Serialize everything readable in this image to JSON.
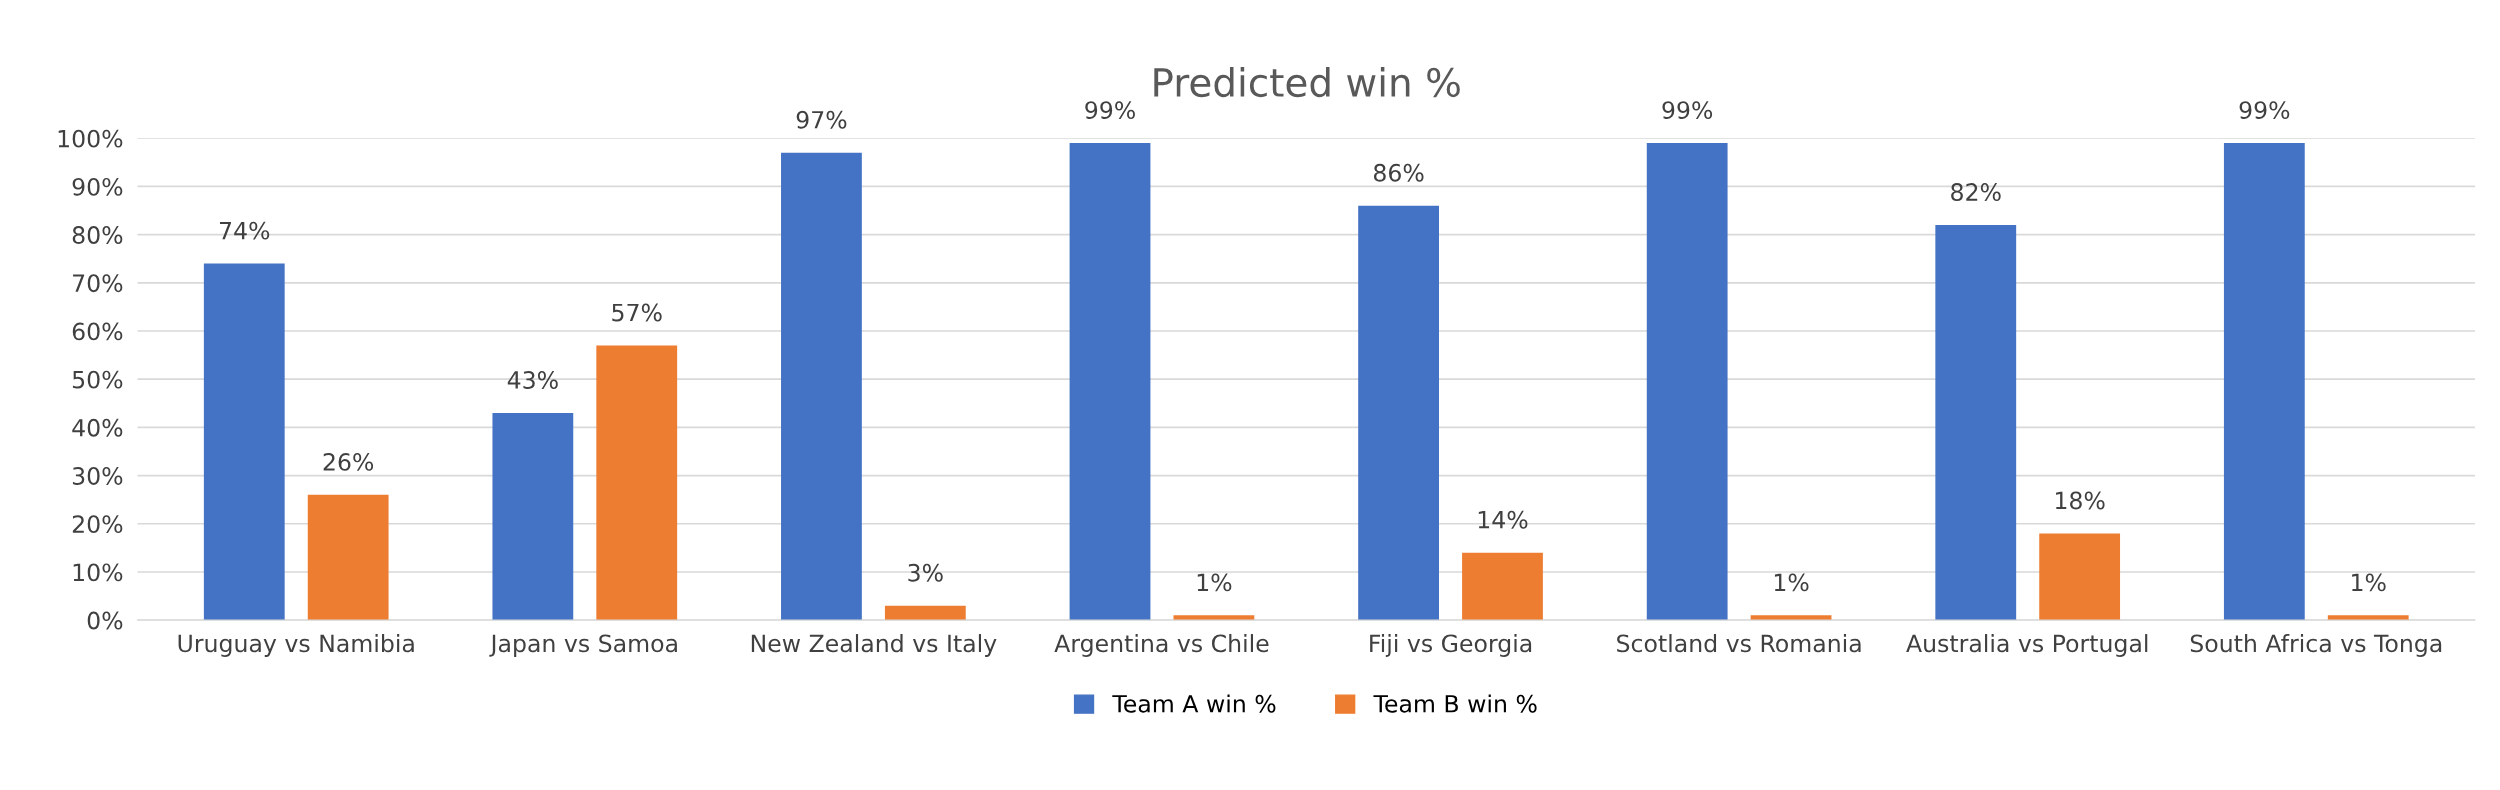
{
  "chart_data": {
    "type": "bar",
    "title": "Predicted win %",
    "categories": [
      "Uruguay vs Namibia",
      "Japan vs Samoa",
      "New Zealand vs Italy",
      "Argentina vs Chile",
      "Fiji vs Georgia",
      "Scotland vs Romania",
      "Australia vs Portugal",
      "South Africa vs Tonga"
    ],
    "series": [
      {
        "name": "Team A win %",
        "color": "#4472c4",
        "values": [
          74,
          43,
          97,
          99,
          86,
          99,
          82,
          99
        ],
        "value_labels": [
          "74%",
          "43%",
          "97%",
          "99%",
          "86%",
          "99%",
          "82%",
          "99%"
        ]
      },
      {
        "name": "Team B win %",
        "color": "#ed7d31",
        "values": [
          26,
          57,
          3,
          1,
          14,
          1,
          18,
          1
        ],
        "value_labels": [
          "26%",
          "57%",
          "3%",
          "1%",
          "14%",
          "1%",
          "18%",
          "1%"
        ]
      }
    ],
    "ylim": [
      0,
      100
    ],
    "yticks": [
      {
        "value": 0,
        "label": "0%"
      },
      {
        "value": 10,
        "label": "10%"
      },
      {
        "value": 20,
        "label": "20%"
      },
      {
        "value": 30,
        "label": "30%"
      },
      {
        "value": 40,
        "label": "40%"
      },
      {
        "value": 50,
        "label": "50%"
      },
      {
        "value": 60,
        "label": "60%"
      },
      {
        "value": 70,
        "label": "70%"
      },
      {
        "value": 80,
        "label": "80%"
      },
      {
        "value": 90,
        "label": "90%"
      },
      {
        "value": 100,
        "label": "100%"
      }
    ],
    "grid": "y",
    "legend": "bottom"
  }
}
